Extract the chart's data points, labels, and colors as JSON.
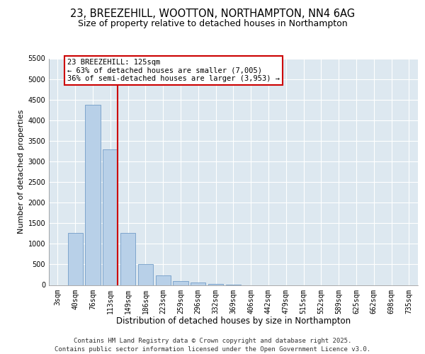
{
  "title1": "23, BREEZEHILL, WOOTTON, NORTHAMPTON, NN4 6AG",
  "title2": "Size of property relative to detached houses in Northampton",
  "xlabel": "Distribution of detached houses by size in Northampton",
  "ylabel": "Number of detached properties",
  "categories": [
    "3sqm",
    "40sqm",
    "76sqm",
    "113sqm",
    "149sqm",
    "186sqm",
    "223sqm",
    "259sqm",
    "296sqm",
    "332sqm",
    "369sqm",
    "406sqm",
    "442sqm",
    "479sqm",
    "515sqm",
    "552sqm",
    "589sqm",
    "625sqm",
    "662sqm",
    "698sqm",
    "735sqm"
  ],
  "values": [
    0,
    1260,
    4380,
    3300,
    1270,
    500,
    225,
    100,
    55,
    30,
    5,
    0,
    0,
    0,
    0,
    0,
    0,
    0,
    0,
    0,
    0
  ],
  "bar_color": "#b8d0e8",
  "bar_edge_color": "#6090c0",
  "vline_color": "#cc0000",
  "annotation_text": "23 BREEZEHILL: 125sqm\n← 63% of detached houses are smaller (7,005)\n36% of semi-detached houses are larger (3,953) →",
  "annotation_box_edge_color": "#cc0000",
  "ylim": [
    0,
    5500
  ],
  "yticks": [
    0,
    500,
    1000,
    1500,
    2000,
    2500,
    3000,
    3500,
    4000,
    4500,
    5000,
    5500
  ],
  "background_color": "#dde8f0",
  "grid_color": "#ffffff",
  "footer": "Contains HM Land Registry data © Crown copyright and database right 2025.\nContains public sector information licensed under the Open Government Licence v3.0.",
  "title1_fontsize": 10.5,
  "title2_fontsize": 9,
  "xlabel_fontsize": 8.5,
  "ylabel_fontsize": 8,
  "tick_fontsize": 7,
  "annotation_fontsize": 7.5,
  "footer_fontsize": 6.5
}
